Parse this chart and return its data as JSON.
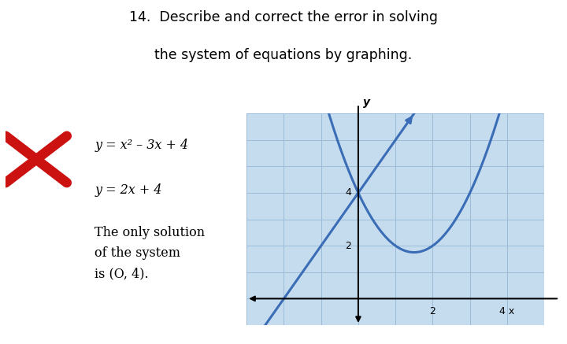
{
  "title_line1": "14.  Describe and correct the error in solving",
  "title_line2": "the system of equations by graphing.",
  "bg_color": "#cce0f0",
  "outer_bg": "#ffffff",
  "eq1": "y = x² – 3x + 4",
  "eq2": "y = 2x + 4",
  "solution_text": "The only solution\nof the system\nis (O, 4).",
  "curve_color": "#3a6db5",
  "line_color": "#3a6db5",
  "xlim": [
    -3,
    5
  ],
  "ylim": [
    -1,
    7
  ],
  "x_ticks": [
    2,
    4
  ],
  "y_ticks": [
    2,
    4
  ],
  "grid_color": "#9bbcd8",
  "graph_bg": "#c5dcef"
}
